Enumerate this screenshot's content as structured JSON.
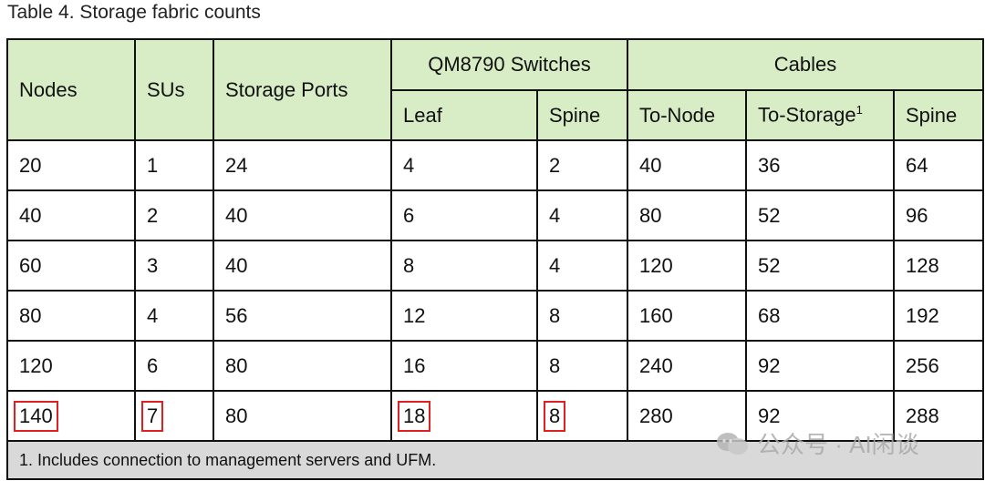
{
  "caption": "Table 4. Storage fabric counts",
  "header": {
    "nodes": "Nodes",
    "sus": "SUs",
    "storage_ports": "Storage Ports",
    "switches_group": "QM8790 Switches",
    "cables_group": "Cables",
    "leaf": "Leaf",
    "spine_sw": "Spine",
    "to_node": "To-Node",
    "to_storage": "To-Storage",
    "to_storage_sup": "1",
    "spine_cable": "Spine"
  },
  "rows": [
    [
      "20",
      "1",
      "24",
      "4",
      "2",
      "40",
      "36",
      "64"
    ],
    [
      "40",
      "2",
      "40",
      "6",
      "4",
      "80",
      "52",
      "96"
    ],
    [
      "60",
      "3",
      "40",
      "8",
      "4",
      "120",
      "52",
      "128"
    ],
    [
      "80",
      "4",
      "56",
      "12",
      "8",
      "160",
      "68",
      "192"
    ],
    [
      "120",
      "6",
      "80",
      "16",
      "8",
      "240",
      "92",
      "256"
    ],
    [
      "140",
      "7",
      "80",
      "18",
      "8",
      "280",
      "92",
      "288"
    ]
  ],
  "highlighted_cells": [
    "nodes",
    "sus",
    "leaf",
    "spine_switches"
  ],
  "highlight_color": "#e02020",
  "header_color": "#d8ecc6",
  "footnote": "1. Includes connection to management servers and UFM.",
  "watermark": "公众号 · AI闲谈"
}
